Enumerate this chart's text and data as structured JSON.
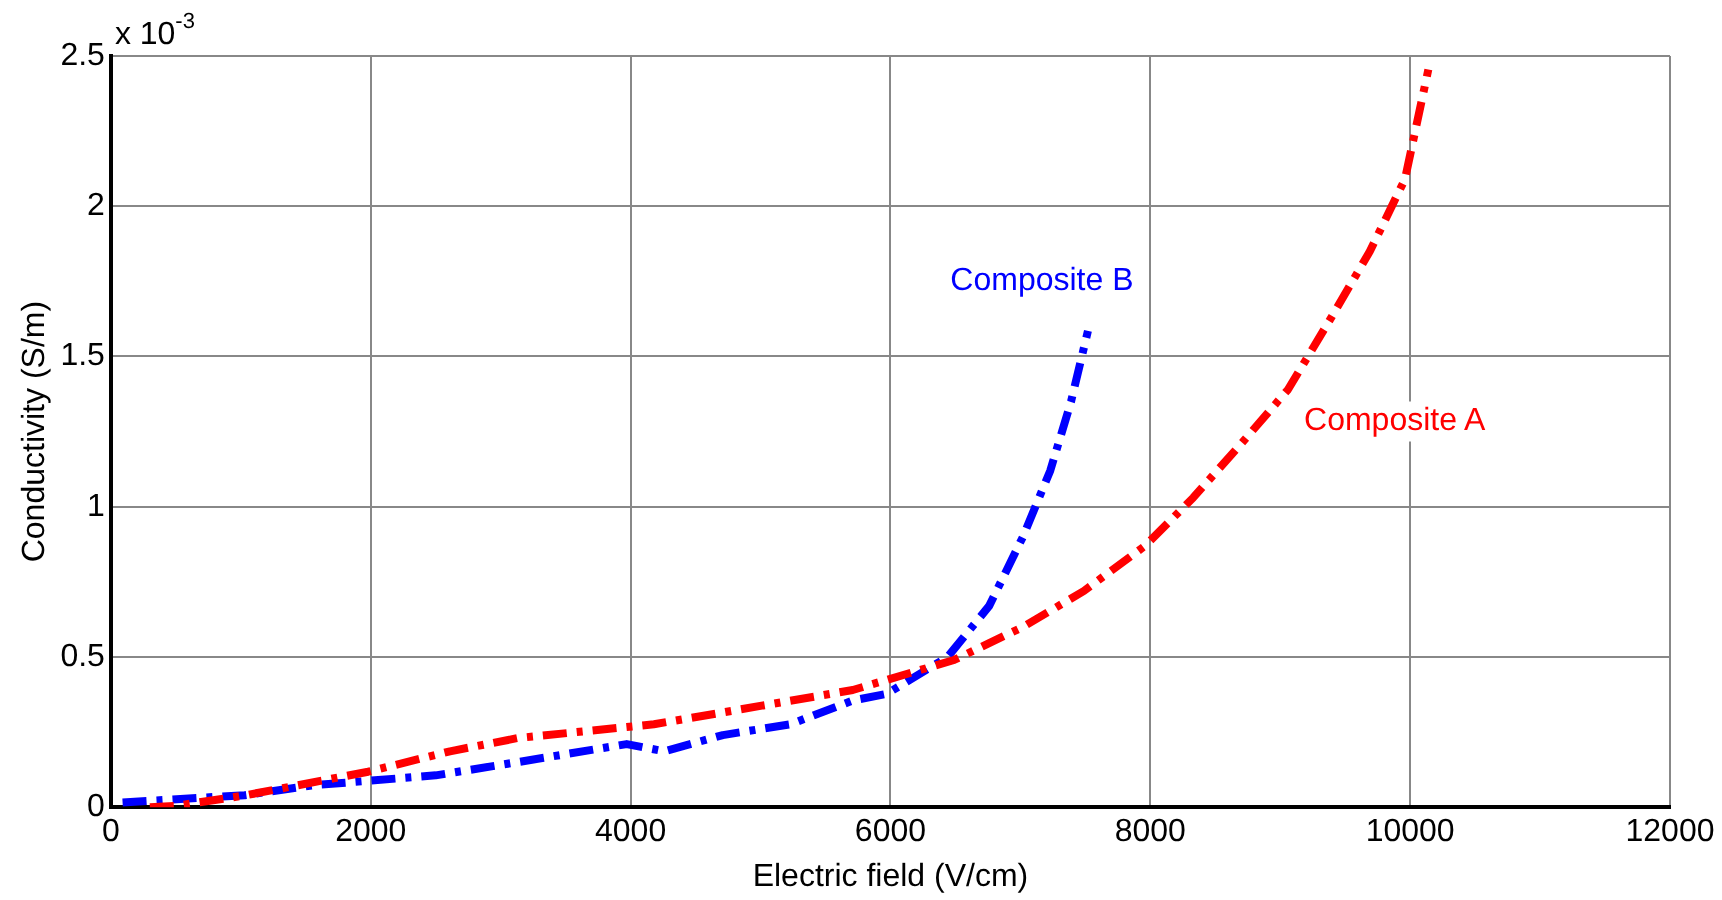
{
  "chart_data": {
    "type": "line",
    "xlabel": "Electric field (V/cm)",
    "ylabel": "Conductivity (S/m)",
    "annotations": [
      "x 10$^{-3}$"
    ],
    "xlim": [
      0,
      12000
    ],
    "xticks": [
      0,
      2000,
      4000,
      6000,
      8000,
      10000,
      12000
    ],
    "ylim": [
      0,
      2.5
    ],
    "yticks": [
      0,
      0.5,
      1,
      1.5,
      2,
      2.5
    ],
    "grid": true,
    "legend": false,
    "marker": "none",
    "line_style": "dashed",
    "series": [
      {
        "name": "Composite A",
        "color": "#ff0000",
        "x": [
          300,
          510,
          1030,
          1980,
          2610,
          3130,
          4180,
          5710,
          6490,
          7020,
          7490,
          7960,
          8330,
          8700,
          9060,
          9380,
          9690,
          9960,
          10140
        ],
        "values": [
          0,
          0.005,
          0.039,
          0.118,
          0.186,
          0.23,
          0.276,
          0.39,
          0.49,
          0.6,
          0.72,
          0.87,
          1.03,
          1.21,
          1.39,
          1.62,
          1.85,
          2.09,
          2.455
        ]
      },
      {
        "name": "Composite B",
        "color": "#0000ff",
        "x": [
          90,
          1030,
          1560,
          2500,
          3130,
          3970,
          4260,
          4710,
          5230,
          5710,
          5970,
          6440,
          6760,
          7020,
          7230,
          7390,
          7520
        ],
        "values": [
          0.016,
          0.04,
          0.073,
          0.106,
          0.15,
          0.21,
          0.186,
          0.24,
          0.276,
          0.355,
          0.377,
          0.5,
          0.67,
          0.9,
          1.12,
          1.35,
          1.585
        ]
      }
    ]
  }
}
